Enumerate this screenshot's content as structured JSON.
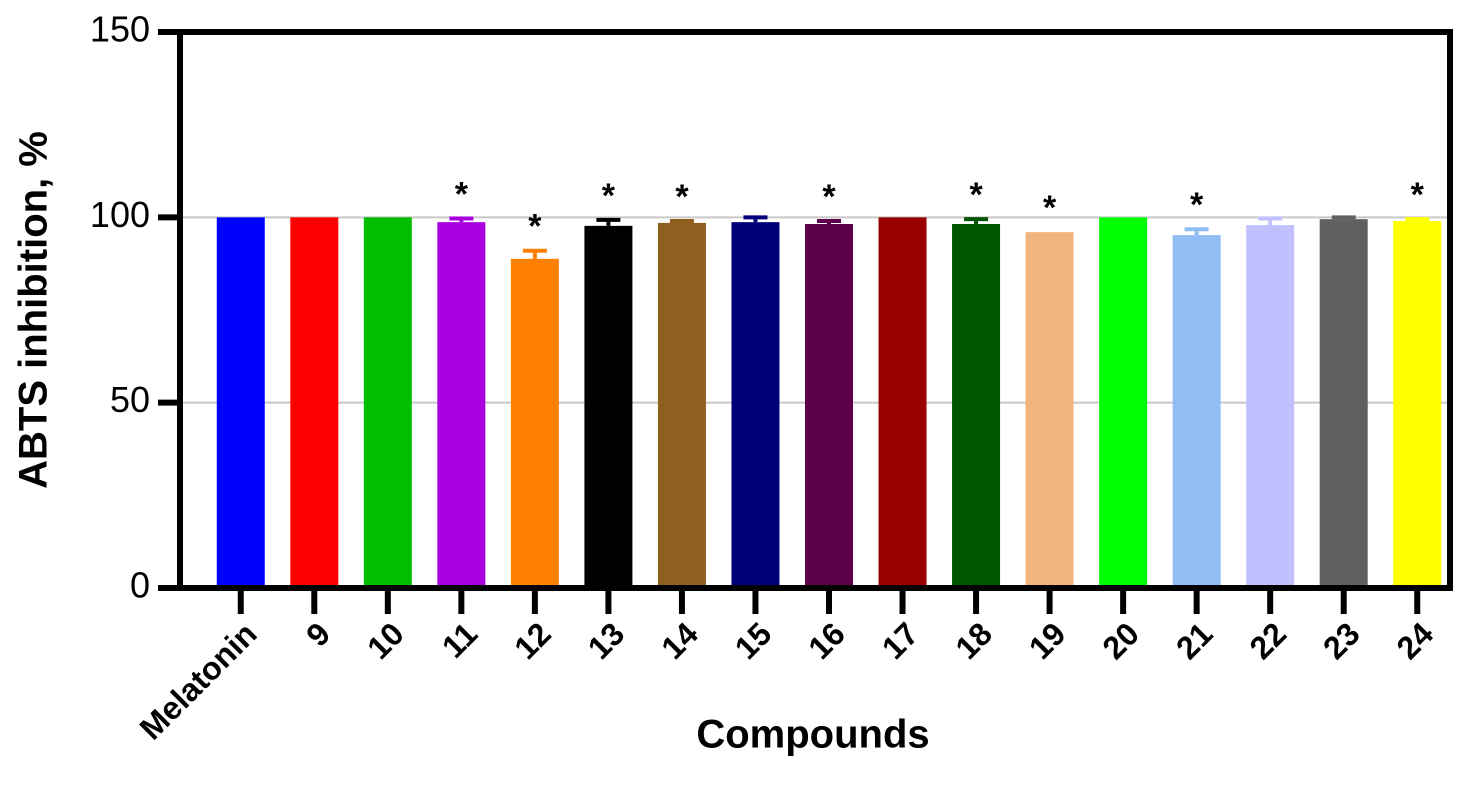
{
  "chart_data": {
    "type": "bar",
    "y_label": "ABTS inhibition, %",
    "x_label": "Compounds",
    "categories": [
      "Melatonin",
      "9",
      "10",
      "11",
      "12",
      "13",
      "14",
      "15",
      "16",
      "17",
      "18",
      "19",
      "20",
      "21",
      "22",
      "23",
      "24"
    ],
    "values": [
      100,
      100,
      100,
      98.7,
      88.8,
      97.7,
      98.5,
      98.7,
      98.2,
      100,
      98.2,
      96,
      100,
      95.2,
      97.9,
      99.5,
      99
    ],
    "errors": [
      0,
      0,
      0,
      1,
      2.2,
      1.6,
      0.5,
      1.3,
      0.8,
      0,
      1.3,
      0,
      0,
      1.6,
      1.8,
      0.5,
      0.5
    ],
    "colors": [
      "#0000ff",
      "#ff0000",
      "#00bf00",
      "#a800e0",
      "#ff8000",
      "#000000",
      "#8f5f1f",
      "#000078",
      "#5c004c",
      "#9a0000",
      "#005500",
      "#f0b47c",
      "#00ff00",
      "#90bdf4",
      "#c0c0ff",
      "#606060",
      "#ffff00"
    ],
    "annotations": [
      {
        "category": "11",
        "text": "*"
      },
      {
        "category": "12",
        "text": "*"
      },
      {
        "category": "13",
        "text": "*"
      },
      {
        "category": "14",
        "text": "*"
      },
      {
        "category": "16",
        "text": "*"
      },
      {
        "category": "18",
        "text": "*"
      },
      {
        "category": "19",
        "text": "*"
      },
      {
        "category": "21",
        "text": "*"
      },
      {
        "category": "24",
        "text": "*"
      }
    ],
    "ylim": [
      0,
      150
    ],
    "yticks": [
      0,
      50,
      100,
      150
    ],
    "grid": true
  }
}
